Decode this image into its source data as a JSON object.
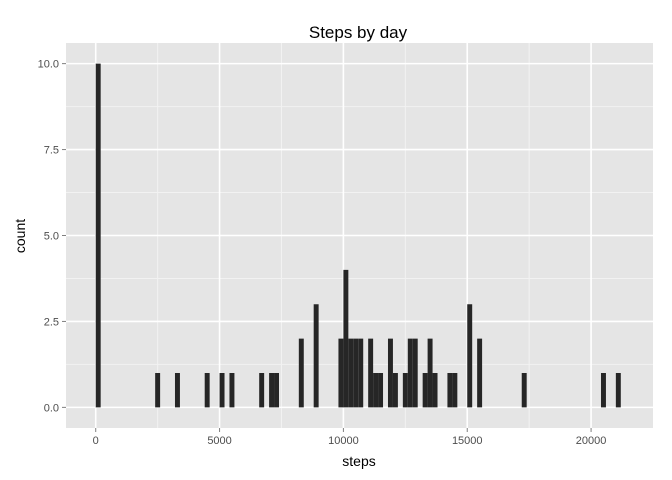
{
  "chart_data": {
    "type": "bar",
    "title": "Steps by day",
    "xlabel": "steps",
    "ylabel": "count",
    "xlim": [
      -1200,
      22500
    ],
    "ylim": [
      -0.6,
      10.6
    ],
    "binwidth": 200,
    "x_ticks": [
      0,
      5000,
      10000,
      15000,
      20000
    ],
    "x_tick_labels": [
      "0",
      "5000",
      "10000",
      "15000",
      "20000"
    ],
    "y_ticks": [
      0,
      2.5,
      5,
      7.5,
      10
    ],
    "y_tick_labels": [
      "0.0",
      "2.5",
      "5.0",
      "7.5",
      "10.0"
    ],
    "grid": true,
    "bins": [
      {
        "x": 100,
        "count": 10
      },
      {
        "x": 2500,
        "count": 1
      },
      {
        "x": 3300,
        "count": 1
      },
      {
        "x": 4500,
        "count": 1
      },
      {
        "x": 5100,
        "count": 1
      },
      {
        "x": 5500,
        "count": 1
      },
      {
        "x": 6700,
        "count": 1
      },
      {
        "x": 7100,
        "count": 1
      },
      {
        "x": 7300,
        "count": 1
      },
      {
        "x": 8300,
        "count": 2
      },
      {
        "x": 8900,
        "count": 3
      },
      {
        "x": 9900,
        "count": 2
      },
      {
        "x": 10100,
        "count": 4
      },
      {
        "x": 10300,
        "count": 2
      },
      {
        "x": 10500,
        "count": 2
      },
      {
        "x": 10700,
        "count": 2
      },
      {
        "x": 11100,
        "count": 2
      },
      {
        "x": 11300,
        "count": 1
      },
      {
        "x": 11500,
        "count": 1
      },
      {
        "x": 11900,
        "count": 2
      },
      {
        "x": 12100,
        "count": 1
      },
      {
        "x": 12500,
        "count": 1
      },
      {
        "x": 12700,
        "count": 2
      },
      {
        "x": 12900,
        "count": 2
      },
      {
        "x": 13300,
        "count": 1
      },
      {
        "x": 13500,
        "count": 2
      },
      {
        "x": 13700,
        "count": 1
      },
      {
        "x": 14300,
        "count": 1
      },
      {
        "x": 14500,
        "count": 1
      },
      {
        "x": 15100,
        "count": 3
      },
      {
        "x": 15500,
        "count": 2
      },
      {
        "x": 17300,
        "count": 1
      },
      {
        "x": 20500,
        "count": 1
      },
      {
        "x": 21100,
        "count": 1
      }
    ],
    "colors": {
      "panel": "#e5e5e5",
      "grid_major": "#ffffff",
      "grid_minor": "#f2f2f2",
      "bar": "#262626",
      "tick": "#7f7f7f"
    }
  }
}
